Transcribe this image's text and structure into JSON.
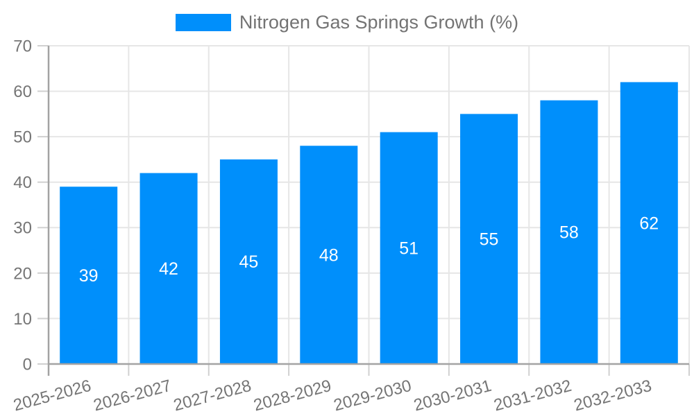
{
  "legend": {
    "label": "Nitrogen Gas Springs Growth (%)"
  },
  "chart_data": {
    "type": "bar",
    "categories": [
      "2025-2026",
      "2026-2027",
      "2027-2028",
      "2028-2029",
      "2029-2030",
      "2030-2031",
      "2031-2032",
      "2032-2033"
    ],
    "series": [
      {
        "name": "Nitrogen Gas Springs Growth (%)",
        "values": [
          39,
          42,
          45,
          48,
          51,
          55,
          58,
          62
        ],
        "color": "#008ffb"
      }
    ],
    "title": "",
    "xlabel": "",
    "ylabel": "",
    "ylim": [
      0,
      70
    ],
    "yticks": [
      0,
      10,
      20,
      30,
      40,
      50,
      60,
      70
    ],
    "grid": true,
    "legend_position": "top-center",
    "x_label_rotation_deg": -15,
    "data_labels": {
      "show": true,
      "position": "center",
      "color": "#ffffff"
    },
    "colors": {
      "bar": "#008ffb",
      "grid": "#e6e6e6",
      "axis_line": "#a3a3a3",
      "tick_line": "#d0d0d0",
      "tick_label": "#757575",
      "legend_label": "#737373",
      "background": "#ffffff"
    }
  }
}
